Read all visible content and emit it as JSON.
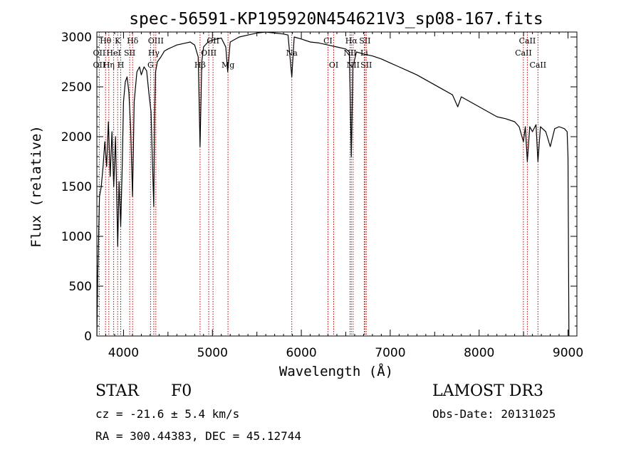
{
  "chart_data": {
    "type": "line",
    "title": "spec-56591-KP195920N454621V3_sp08-167.fits",
    "xlabel": "Wavelength (Å)",
    "ylabel": "Flux (relative)",
    "xlim": [
      3700,
      9100
    ],
    "ylim": [
      0,
      3050
    ],
    "xticks": [
      4000,
      5000,
      6000,
      7000,
      8000,
      9000
    ],
    "yticks": [
      0,
      500,
      1000,
      1500,
      2000,
      2500,
      3000
    ],
    "grid": false,
    "series": [
      {
        "name": "Flux",
        "x": [
          3700,
          3710,
          3730,
          3750,
          3770,
          3790,
          3810,
          3830,
          3850,
          3870,
          3890,
          3910,
          3935,
          3950,
          3968,
          3985,
          4000,
          4020,
          4040,
          4060,
          4080,
          4101,
          4120,
          4150,
          4180,
          4200,
          4230,
          4260,
          4290,
          4310,
          4320,
          4340,
          4350,
          4360,
          4380,
          4420,
          4460,
          4500,
          4550,
          4600,
          4650,
          4700,
          4750,
          4800,
          4840,
          4861,
          4880,
          4900,
          4950,
          5000,
          5050,
          5100,
          5150,
          5172,
          5200,
          5300,
          5400,
          5500,
          5600,
          5700,
          5800,
          5850,
          5893,
          5920,
          6000,
          6100,
          6200,
          6300,
          6400,
          6500,
          6540,
          6563,
          6580,
          6620,
          6700,
          6800,
          6900,
          7000,
          7100,
          7200,
          7300,
          7400,
          7500,
          7600,
          7700,
          7760,
          7800,
          7900,
          8000,
          8100,
          8200,
          8300,
          8400,
          8450,
          8498,
          8520,
          8542,
          8570,
          8600,
          8640,
          8662,
          8690,
          8750,
          8800,
          8850,
          8900,
          8960,
          8990,
          9000,
          9010
        ],
        "values": [
          0,
          600,
          1400,
          1500,
          1700,
          1950,
          1700,
          2150,
          1600,
          2050,
          1500,
          2000,
          900,
          1550,
          1100,
          1700,
          2350,
          2550,
          2600,
          2450,
          2100,
          1400,
          2350,
          2650,
          2700,
          2620,
          2700,
          2660,
          2400,
          2250,
          1900,
          1300,
          2200,
          2650,
          2750,
          2800,
          2860,
          2880,
          2900,
          2920,
          2930,
          2940,
          2950,
          2920,
          2800,
          1900,
          2750,
          2900,
          2950,
          2970,
          2980,
          2990,
          2900,
          2650,
          2950,
          3000,
          3020,
          3040,
          3050,
          3040,
          3030,
          3020,
          2600,
          3000,
          2980,
          2950,
          2940,
          2920,
          2900,
          2880,
          2850,
          1800,
          2700,
          2850,
          2830,
          2810,
          2780,
          2740,
          2700,
          2660,
          2620,
          2570,
          2520,
          2470,
          2420,
          2300,
          2400,
          2350,
          2300,
          2250,
          2200,
          2180,
          2150,
          2100,
          1950,
          2100,
          1750,
          2100,
          2050,
          2120,
          1750,
          2100,
          2050,
          1900,
          2080,
          2100,
          2080,
          2050,
          1800,
          0
        ]
      }
    ],
    "line_labels": [
      {
        "label": "Hθ",
        "x": 3798,
        "row": 0
      },
      {
        "label": "K",
        "x": 3934,
        "row": 0
      },
      {
        "label": "Hδ",
        "x": 4102,
        "row": 0
      },
      {
        "label": "OIII",
        "x": 4363,
        "row": 0
      },
      {
        "label": "OII",
        "x": 5007,
        "row": 0
      },
      {
        "label": "CI",
        "x": 6300,
        "row": 0
      },
      {
        "label": "Hα",
        "x": 6563,
        "row": 0
      },
      {
        "label": "SII",
        "x": 6716,
        "row": 0
      },
      {
        "label": "CaII",
        "x": 8542,
        "row": 0
      },
      {
        "label": "OII",
        "x": 3727,
        "row": 1
      },
      {
        "label": "HeI",
        "x": 3889,
        "row": 1
      },
      {
        "label": "SII",
        "x": 4069,
        "row": 1
      },
      {
        "label": "Hγ",
        "x": 4340,
        "row": 1
      },
      {
        "label": "OIII",
        "x": 4959,
        "row": 1
      },
      {
        "label": "Na",
        "x": 5893,
        "row": 1
      },
      {
        "label": "NII",
        "x": 6548,
        "row": 1
      },
      {
        "label": "Li",
        "x": 6708,
        "row": 1
      },
      {
        "label": "CaII",
        "x": 8498,
        "row": 1
      },
      {
        "label": "OII",
        "x": 3727,
        "row": 2
      },
      {
        "label": "Hη",
        "x": 3835,
        "row": 2
      },
      {
        "label": "H",
        "x": 3968,
        "row": 2
      },
      {
        "label": "G",
        "x": 4304,
        "row": 2
      },
      {
        "label": "Hβ",
        "x": 4861,
        "row": 2
      },
      {
        "label": "Mg",
        "x": 5175,
        "row": 2
      },
      {
        "label": "OI",
        "x": 6364,
        "row": 2
      },
      {
        "label": "NII",
        "x": 6583,
        "row": 2
      },
      {
        "label": "SII",
        "x": 6731,
        "row": 2
      },
      {
        "label": "CaII",
        "x": 8662,
        "row": 2
      }
    ],
    "line_markers": [
      3727,
      3798,
      3835,
      3889,
      3934,
      3968,
      4069,
      4102,
      4304,
      4340,
      4363,
      4861,
      4959,
      5007,
      5175,
      5893,
      6300,
      6364,
      6548,
      6563,
      6583,
      6708,
      6716,
      6731,
      8498,
      8542,
      8662
    ],
    "line_color": "#000000",
    "marker_color": "#c00000"
  },
  "info": {
    "object_class": "STAR",
    "subclass": "F0",
    "survey": "LAMOST DR3",
    "redshift": "cz = -21.6 ± 5.4 km/s",
    "obs_date": "Obs-Date: 20131025",
    "coords": "RA = 300.44383, DEC =  45.12744"
  }
}
